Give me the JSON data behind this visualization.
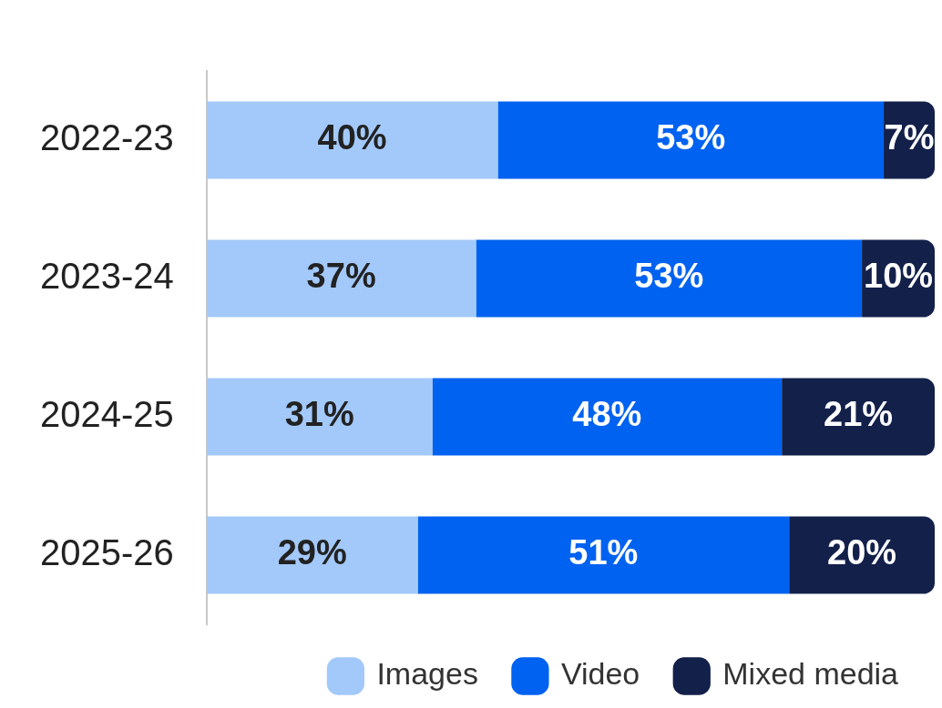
{
  "chart_data": {
    "type": "bar",
    "orientation": "horizontal",
    "stacked": true,
    "categories": [
      "2022-23",
      "2023-24",
      "2024-25",
      "2025-26"
    ],
    "series": [
      {
        "name": "Images",
        "color": "#a3c9fb",
        "values": [
          40,
          37,
          31,
          29
        ],
        "value_labels": [
          "40%",
          "37%",
          "31%",
          "29%"
        ]
      },
      {
        "name": "Video",
        "color": "#0062f0",
        "values": [
          53,
          53,
          48,
          51
        ],
        "value_labels": [
          "53%",
          "53%",
          "48%",
          "51%"
        ]
      },
      {
        "name": "Mixed media",
        "color": "#13204a",
        "values": [
          7,
          10,
          21,
          20
        ],
        "value_labels": [
          "7%",
          "10%",
          "21%",
          "20%"
        ]
      }
    ],
    "legend": "bottom"
  }
}
